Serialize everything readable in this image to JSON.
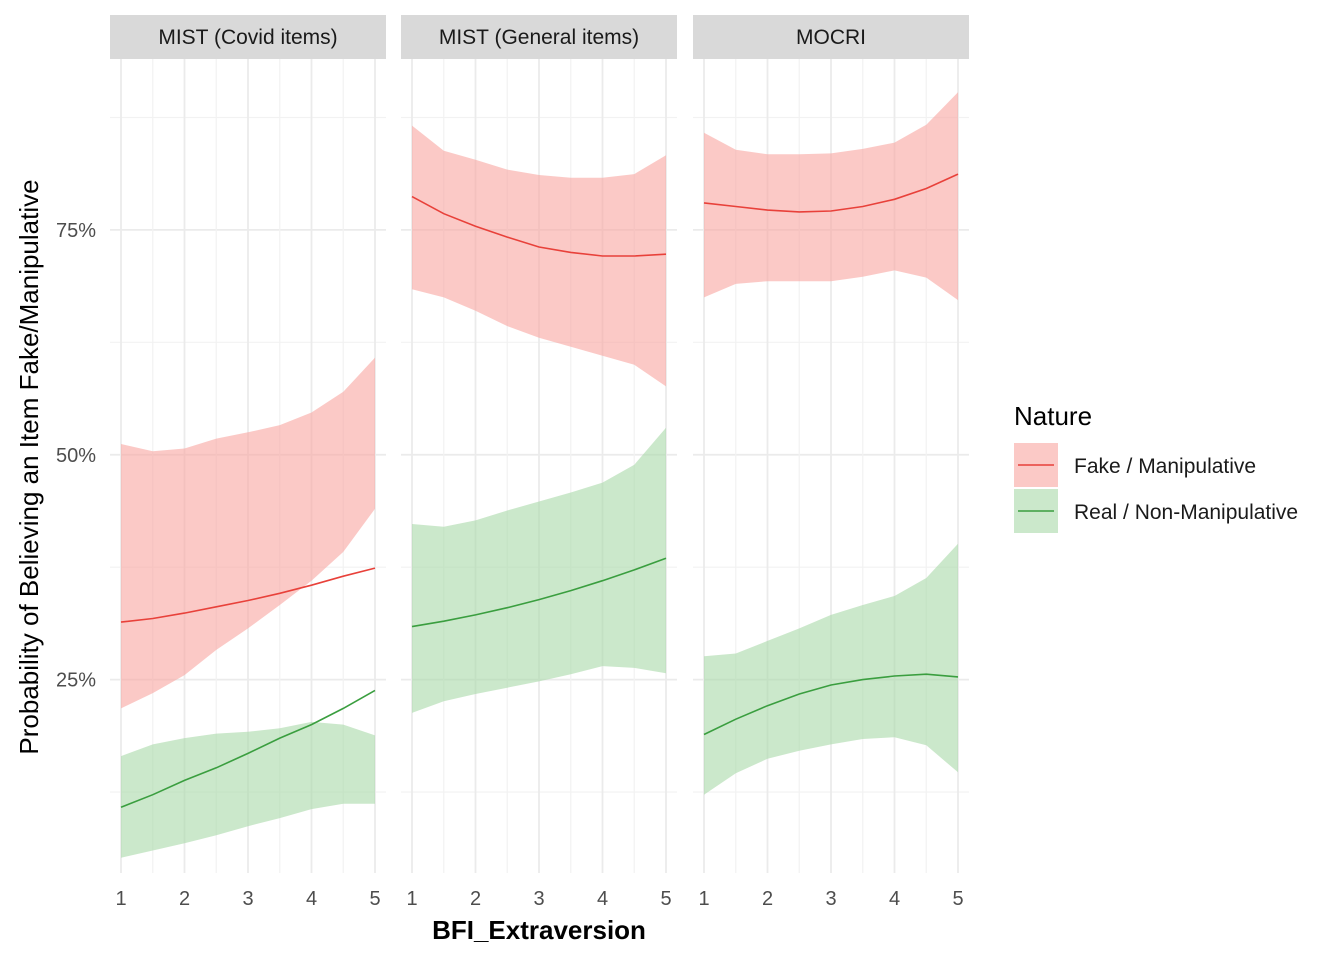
{
  "chart_data": {
    "type": "line",
    "ylabel": "Probability of Believing an Item Fake/Manipulative",
    "xlabel": "BFI_Extraversion",
    "xlim": [
      1,
      5
    ],
    "ylim": [
      0.035,
      0.94
    ],
    "x_ticks": [
      1,
      2,
      3,
      4,
      5
    ],
    "x_tick_labels": [
      "1",
      "2",
      "3",
      "4",
      "5"
    ],
    "y_ticks": [
      0.25,
      0.5,
      0.75
    ],
    "y_tick_labels": [
      "25%",
      "50%",
      "75%"
    ],
    "grid": true,
    "legend": {
      "title": "Nature",
      "placement": "right",
      "entries": [
        {
          "key": "fake",
          "label": "Fake / Manipulative",
          "line_color": "#E8413A",
          "fill_color": "#F8A5A0"
        },
        {
          "key": "real",
          "label": "Real / Non-Manipulative",
          "line_color": "#3A9E3F",
          "fill_color": "#A9D9A9"
        }
      ]
    },
    "x": [
      1,
      1.5,
      2,
      2.5,
      3,
      3.5,
      4,
      4.5,
      5
    ],
    "panels": [
      {
        "title": "MIST (Covid items)",
        "series": [
          {
            "key": "fake",
            "values": [
              0.314,
              0.318,
              0.324,
              0.331,
              0.338,
              0.346,
              0.355,
              0.365,
              0.374
            ],
            "lower": [
              0.218,
              0.235,
              0.255,
              0.283,
              0.307,
              0.333,
              0.36,
              0.392,
              0.44
            ],
            "upper": [
              0.512,
              0.504,
              0.507,
              0.518,
              0.525,
              0.533,
              0.547,
              0.57,
              0.608
            ]
          },
          {
            "key": "real",
            "values": [
              0.108,
              0.122,
              0.138,
              0.152,
              0.168,
              0.185,
              0.2,
              0.218,
              0.238
            ],
            "lower": [
              0.052,
              0.06,
              0.068,
              0.077,
              0.087,
              0.096,
              0.106,
              0.112,
              0.112
            ],
            "upper": [
              0.165,
              0.178,
              0.185,
              0.19,
              0.192,
              0.196,
              0.203,
              0.2,
              0.188
            ]
          }
        ]
      },
      {
        "title": "MIST (General items)",
        "series": [
          {
            "key": "fake",
            "values": [
              0.787,
              0.768,
              0.754,
              0.742,
              0.731,
              0.725,
              0.721,
              0.721,
              0.723
            ],
            "lower": [
              0.684,
              0.675,
              0.66,
              0.643,
              0.63,
              0.62,
              0.61,
              0.6,
              0.576
            ],
            "upper": [
              0.866,
              0.838,
              0.828,
              0.817,
              0.811,
              0.808,
              0.808,
              0.812,
              0.833
            ]
          },
          {
            "key": "real",
            "values": [
              0.309,
              0.315,
              0.322,
              0.33,
              0.339,
              0.349,
              0.36,
              0.372,
              0.385
            ],
            "lower": [
              0.213,
              0.226,
              0.234,
              0.241,
              0.248,
              0.256,
              0.265,
              0.263,
              0.257
            ],
            "upper": [
              0.423,
              0.42,
              0.427,
              0.438,
              0.448,
              0.458,
              0.469,
              0.489,
              0.53
            ]
          }
        ]
      },
      {
        "title": "MOCRI",
        "series": [
          {
            "key": "fake",
            "values": [
              0.78,
              0.776,
              0.772,
              0.77,
              0.771,
              0.776,
              0.784,
              0.796,
              0.812
            ],
            "lower": [
              0.675,
              0.69,
              0.693,
              0.693,
              0.693,
              0.698,
              0.705,
              0.697,
              0.672
            ],
            "upper": [
              0.858,
              0.839,
              0.834,
              0.834,
              0.835,
              0.84,
              0.847,
              0.867,
              0.903
            ]
          },
          {
            "key": "real",
            "values": [
              0.189,
              0.206,
              0.221,
              0.234,
              0.244,
              0.25,
              0.254,
              0.256,
              0.253
            ],
            "lower": [
              0.122,
              0.146,
              0.162,
              0.171,
              0.178,
              0.184,
              0.186,
              0.177,
              0.147
            ],
            "upper": [
              0.276,
              0.279,
              0.293,
              0.307,
              0.322,
              0.333,
              0.343,
              0.363,
              0.401
            ]
          }
        ]
      }
    ]
  }
}
